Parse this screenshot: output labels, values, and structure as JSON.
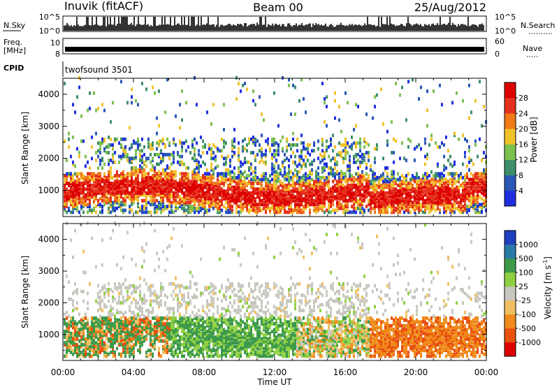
{
  "header": {
    "station": "Inuvik (fitACF)",
    "beam": "Beam 00",
    "date": "25/Aug/2012"
  },
  "small_panels": {
    "nsky_label": "N.Sky",
    "nsky_ticks": [
      "10^5",
      "10^0"
    ],
    "nsearch_label": "N.Search",
    "nsearch_ticks": [
      "10^5",
      "10^0"
    ],
    "freq_label_1": "Freq.",
    "freq_label_2": "[MHz]",
    "freq_ticks": [
      "10",
      "8"
    ],
    "nave_label": "Nave",
    "nave_ticks": [
      "60",
      "0"
    ],
    "cpid_label": "CPID",
    "cpid_value": "twofsound 3501"
  },
  "chart_data": [
    {
      "type": "heatmap",
      "parameter": "Power",
      "ylabel": "Slant Range [km]",
      "yticks": [
        1000,
        2000,
        3000,
        4000
      ],
      "ylim": [
        180,
        4500
      ],
      "xlim": [
        "00:00",
        "00:00"
      ],
      "colorbar": {
        "label": "Power [dB]",
        "ticks": [
          4,
          8,
          12,
          16,
          20,
          24,
          28
        ],
        "colors": [
          "#1f2fe0",
          "#2a57b8",
          "#3f8f6a",
          "#7cc150",
          "#f0c22a",
          "#f07a18",
          "#e5321c",
          "#dd0000"
        ]
      }
    },
    {
      "type": "heatmap",
      "parameter": "Velocity",
      "ylabel": "Slant Range [km]",
      "yticks": [
        1000,
        2000,
        3000,
        4000
      ],
      "ylim": [
        180,
        4500
      ],
      "xlim": [
        "00:00",
        "00:00"
      ],
      "colorbar": {
        "label": "Velocity [m s",
        "label_sup": "-1",
        "label_end": "]",
        "ticks": [
          1000,
          500,
          100,
          25,
          -25,
          -100,
          -500,
          -1000
        ],
        "colors": [
          "#1f3fbf",
          "#2a7aa8",
          "#3d9a4a",
          "#8fd040",
          "#c8c8c0",
          "#f0c060",
          "#f08a1a",
          "#e85010",
          "#dd0000"
        ]
      }
    }
  ],
  "xaxis": {
    "label": "Time UT",
    "ticks": [
      "00:00",
      "04:00",
      "08:00",
      "12:00",
      "16:00",
      "20:00",
      "00:00"
    ]
  }
}
